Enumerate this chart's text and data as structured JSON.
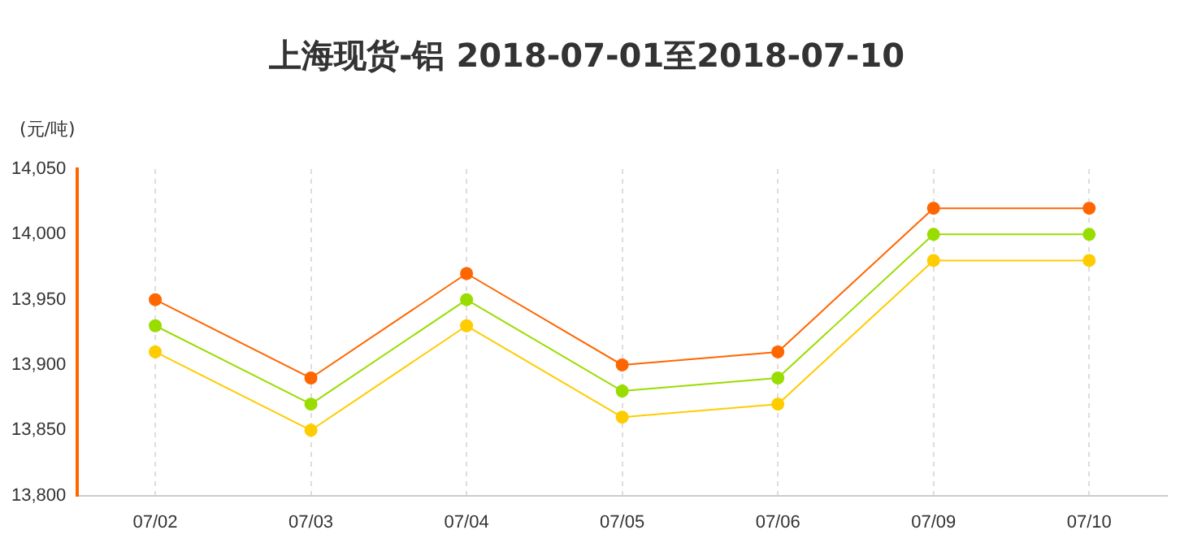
{
  "chart_data": {
    "type": "line",
    "title": "上海现货-铝 2018-07-01至2018-07-10",
    "ylabel": "(元/吨)",
    "categories": [
      "07/02",
      "07/03",
      "07/04",
      "07/05",
      "07/06",
      "07/09",
      "07/10"
    ],
    "series": [
      {
        "color": "#ff6600",
        "values": [
          13950,
          13890,
          13970,
          13900,
          13910,
          14020,
          14020
        ]
      },
      {
        "color": "#99dd00",
        "values": [
          13930,
          13870,
          13950,
          13880,
          13890,
          14000,
          14000
        ]
      },
      {
        "color": "#ffcc00",
        "values": [
          13910,
          13850,
          13930,
          13860,
          13870,
          13980,
          13980
        ]
      }
    ],
    "ylim": [
      13800,
      14050
    ],
    "yticks": [
      {
        "value": 13800,
        "label": "13,800"
      },
      {
        "value": 13850,
        "label": "13,850"
      },
      {
        "value": 13900,
        "label": "13,900"
      },
      {
        "value": 13950,
        "label": "13,950"
      },
      {
        "value": 14000,
        "label": "14,000"
      },
      {
        "value": 14050,
        "label": "14,050"
      }
    ],
    "grid": "x",
    "legend": false,
    "marker": "circle",
    "line_style": "solid"
  }
}
